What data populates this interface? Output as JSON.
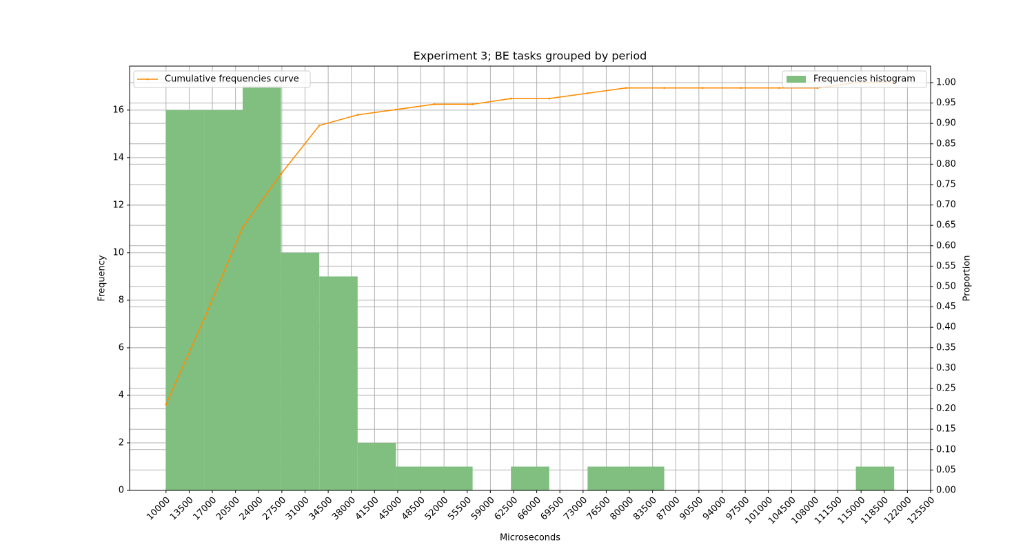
{
  "chart_data": {
    "type": "histogram",
    "title": "Experiment 3; BE tasks grouped by period",
    "xlabel": "Microseconds",
    "ylabel": "Frequency",
    "y2label": "Proportion",
    "bins": [
      10000,
      15789.47,
      21578.95,
      27368.42,
      33157.89,
      38947.37,
      44736.84,
      50526.32,
      56315.79,
      62105.26,
      67894.74,
      73684.21,
      79473.68,
      85263.16,
      91052.63,
      96842.11,
      102631.58,
      108421.05,
      114210.53,
      120000
    ],
    "series": [
      {
        "name": "Frequencies histogram",
        "type": "histogram",
        "color": "#80bf80",
        "legend": "upper right",
        "values": [
          16,
          16,
          17,
          10,
          9,
          2,
          1,
          1,
          0,
          1,
          0,
          1,
          1,
          0,
          0,
          0,
          0,
          0,
          1
        ]
      },
      {
        "name": "Cumulative frequencies curve",
        "type": "line",
        "color": "#ff8c00",
        "axis": "y2",
        "legend": "upper left",
        "x": [
          10000,
          15789.47,
          21578.95,
          27368.42,
          33157.89,
          38947.37,
          44736.84,
          50526.32,
          56315.79,
          62105.26,
          67894.74,
          73684.21,
          79473.68,
          85263.16,
          91052.63,
          96842.11,
          102631.58,
          108421.05,
          114210.53,
          120000
        ],
        "values": [
          0.211,
          0.421,
          0.645,
          0.776,
          0.895,
          0.921,
          0.934,
          0.947,
          0.947,
          0.961,
          0.961,
          0.974,
          0.987,
          0.987,
          0.987,
          0.987,
          0.987,
          0.987,
          1.0,
          1.0
        ]
      }
    ],
    "xlim": [
      4500,
      125500
    ],
    "xticks": [
      10000,
      13500,
      17000,
      20500,
      24000,
      27500,
      31000,
      34500,
      38000,
      41500,
      45000,
      48500,
      52000,
      55500,
      59000,
      62500,
      66000,
      69500,
      73000,
      76500,
      80000,
      83500,
      87000,
      90500,
      94000,
      97500,
      101000,
      104500,
      108000,
      111500,
      115000,
      118500,
      122000,
      125500
    ],
    "ylim": [
      0,
      17.85
    ],
    "yticks": [
      0,
      2,
      4,
      6,
      8,
      10,
      12,
      14,
      16
    ],
    "y2lim": [
      0,
      1.0405
    ],
    "y2ticks": [
      {
        "value": 0,
        "label": "0.00"
      },
      {
        "value": 0.05,
        "label": "0.05"
      },
      {
        "value": 0.1,
        "label": "0.10"
      },
      {
        "value": 0.15,
        "label": "0.15"
      },
      {
        "value": 0.2,
        "label": "0.20"
      },
      {
        "value": 0.25,
        "label": "0.25"
      },
      {
        "value": 0.3,
        "label": "0.30"
      },
      {
        "value": 0.35,
        "label": "0.35"
      },
      {
        "value": 0.4,
        "label": "0.40"
      },
      {
        "value": 0.45,
        "label": "0.45"
      },
      {
        "value": 0.5,
        "label": "0.50"
      },
      {
        "value": 0.55,
        "label": "0.55"
      },
      {
        "value": 0.6,
        "label": "0.60"
      },
      {
        "value": 0.65,
        "label": "0.65"
      },
      {
        "value": 0.7,
        "label": "0.70"
      },
      {
        "value": 0.75,
        "label": "0.75"
      },
      {
        "value": 0.8,
        "label": "0.80"
      },
      {
        "value": 0.85,
        "label": "0.85"
      },
      {
        "value": 0.9,
        "label": "0.90"
      },
      {
        "value": 0.95,
        "label": "0.95"
      },
      {
        "value": 1.0,
        "label": "1.00"
      }
    ],
    "grid": true
  }
}
